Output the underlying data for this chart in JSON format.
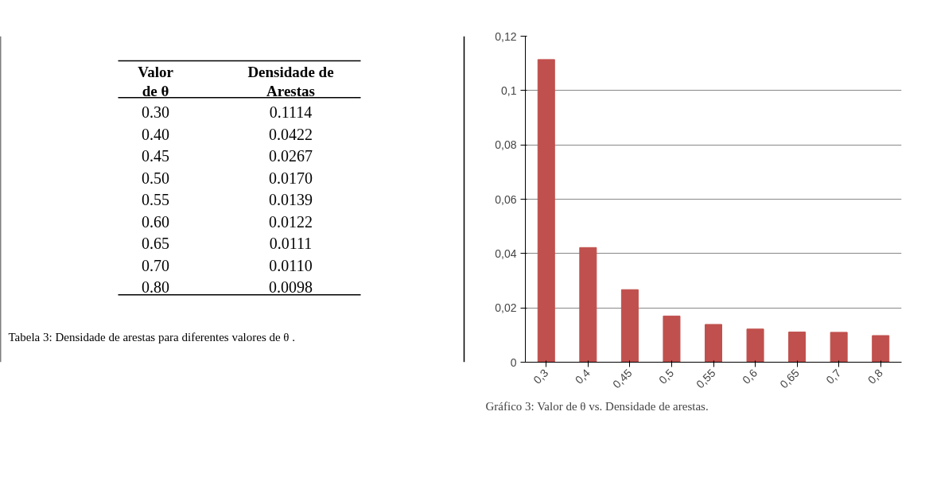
{
  "chart_data": {
    "type": "bar",
    "categories": [
      "0,3",
      "0,4",
      "0,45",
      "0,5",
      "0,55",
      "0,6",
      "0,65",
      "0,7",
      "0,8"
    ],
    "values": [
      0.1114,
      0.0422,
      0.0267,
      0.017,
      0.0139,
      0.0122,
      0.0111,
      0.011,
      0.0098
    ],
    "color": "#c0504d",
    "ylim": [
      0,
      0.12
    ],
    "yticks": [
      {
        "value": 0,
        "label": "0"
      },
      {
        "value": 0.02,
        "label": "0,02"
      },
      {
        "value": 0.04,
        "label": "0,04"
      },
      {
        "value": 0.06,
        "label": "0,06"
      },
      {
        "value": 0.08,
        "label": "0,08"
      },
      {
        "value": 0.1,
        "label": "0,1"
      },
      {
        "value": 0.12,
        "label": "0,12"
      }
    ],
    "grid": "y",
    "annotations": [
      "Valor\nde θ",
      "Densidade de\nArestas",
      "0.30",
      "0.40",
      "0.45",
      "0.50",
      "0.55",
      "0.60",
      "0.65",
      "0.70",
      "0.80",
      "0.1114",
      "0.0422",
      "0.0267",
      "0.0170",
      "0.0139",
      "0.0122",
      "0.0111",
      "0.0110",
      "0.0098",
      "Tabela 3: Densidade de arestas para diferentes valores de θ .",
      "Gráfico 3: Valor de θ   vs. Densidade de arestas."
    ]
  }
}
